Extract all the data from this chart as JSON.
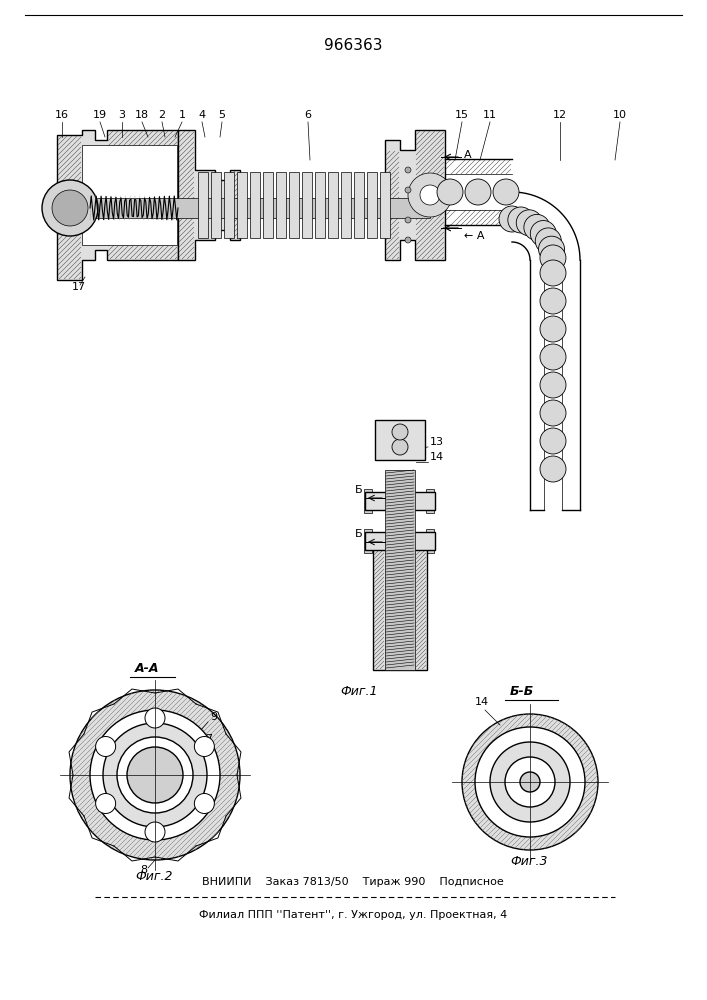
{
  "title": "966363",
  "bottom_line1": "ВНИИПИ    Заказ 7813/50    Тираж 990    Подписное",
  "bottom_line2": "Филиал ППП ''Патент'', г. Ужгород, ул. Проектная, 4",
  "fig1_label": "Фиг.1",
  "fig2_label": "Фиг.2",
  "fig3_label": "Фиг.3",
  "section_aa": "А-А",
  "section_bb": "Б-Б",
  "bg_color": "#ffffff",
  "line_color": "#000000",
  "title_fontsize": 11,
  "label_fontsize": 9,
  "small_fontsize": 8
}
